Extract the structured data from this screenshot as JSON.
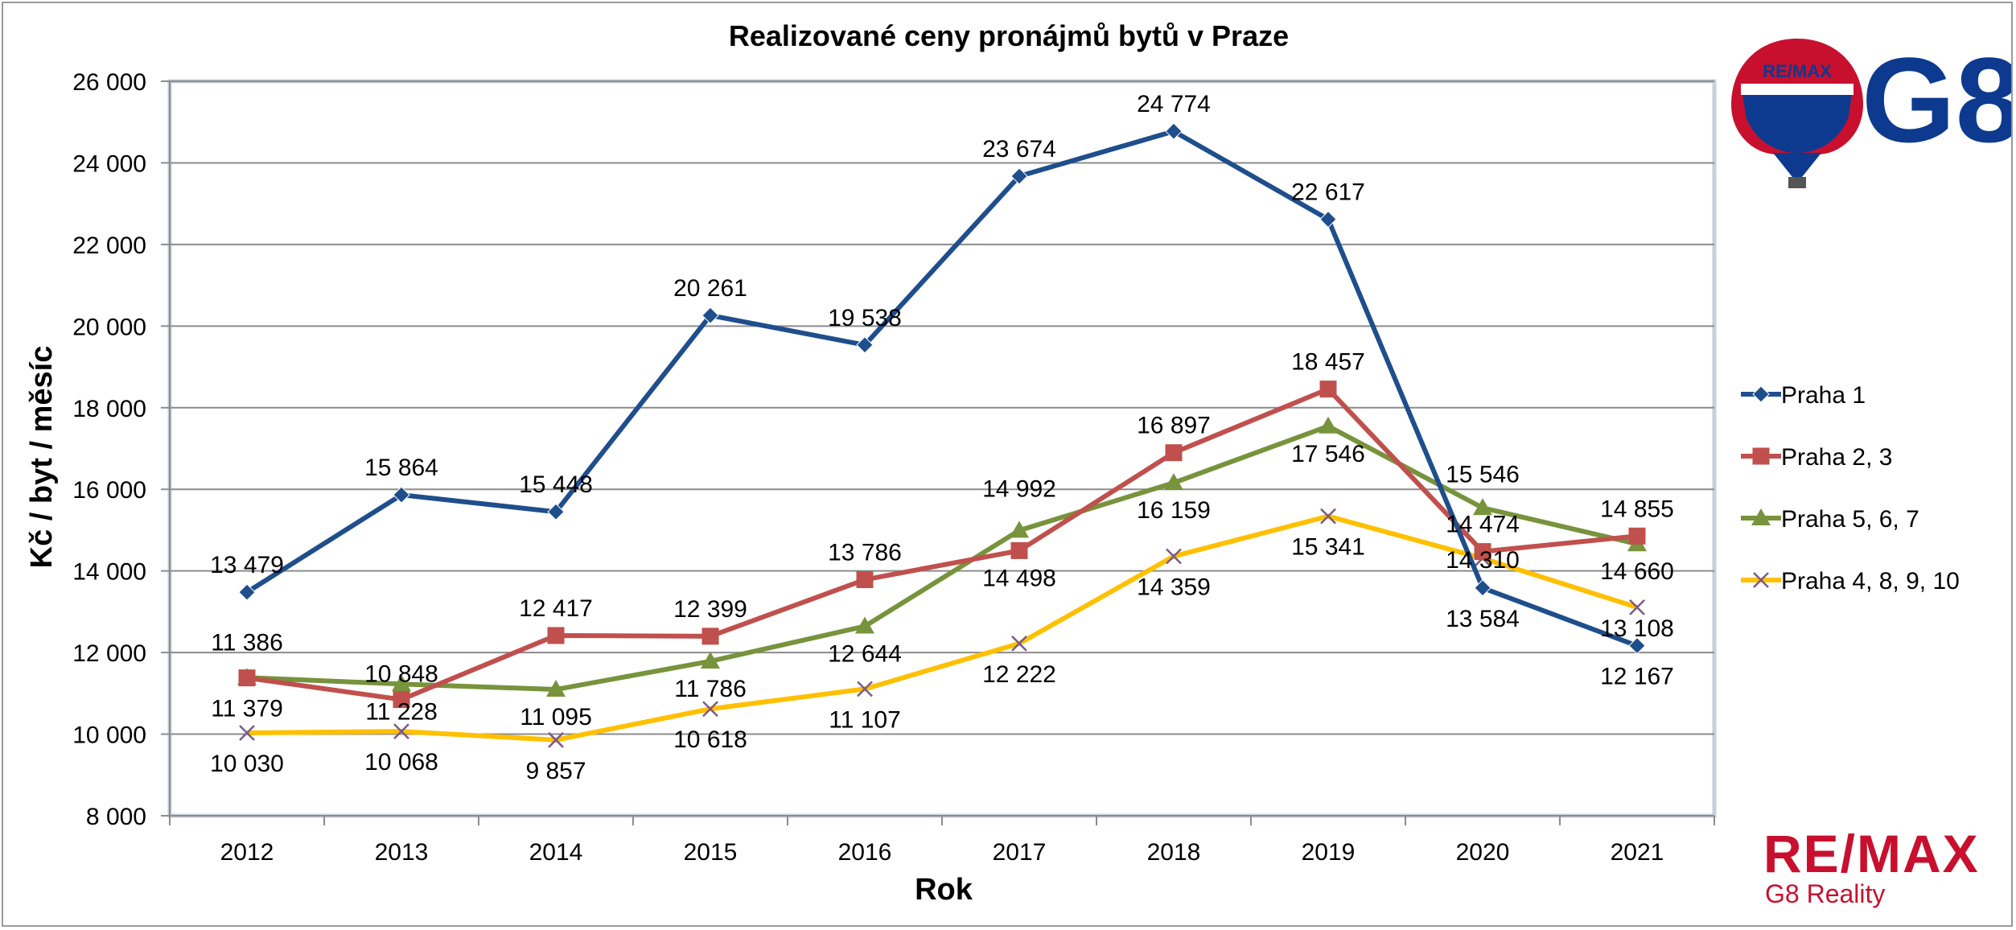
{
  "chart_data": {
    "type": "line",
    "title": "Realizované ceny pronájmů bytů v Praze",
    "xlabel": "Rok",
    "ylabel": "Kč / byt / měsíc",
    "ylim": [
      8000,
      26000
    ],
    "yticks": [
      8000,
      10000,
      12000,
      14000,
      16000,
      18000,
      20000,
      22000,
      24000,
      26000
    ],
    "ytick_labels": [
      "8 000",
      "10 000",
      "12 000",
      "14 000",
      "16 000",
      "18 000",
      "20 000",
      "22 000",
      "24 000",
      "26 000"
    ],
    "categories": [
      "2012",
      "2013",
      "2014",
      "2015",
      "2016",
      "2017",
      "2018",
      "2019",
      "2020",
      "2021"
    ],
    "grid": true,
    "legend_position": "right",
    "series": [
      {
        "name": "Praha 1",
        "color": "#1f4e8c",
        "marker": "diamond",
        "values": [
          13479,
          15864,
          15448,
          20261,
          19538,
          23674,
          24774,
          22617,
          13584,
          12167
        ],
        "labels": [
          "13 479",
          "15 864",
          "15 448",
          "20 261",
          "19 538",
          "23 674",
          "24 774",
          "22 617",
          "13 584",
          "12 167"
        ]
      },
      {
        "name": "Praha 2, 3",
        "color": "#c0504d",
        "marker": "square",
        "values": [
          11379,
          10848,
          12417,
          12399,
          13786,
          14498,
          16897,
          18457,
          14474,
          14855
        ],
        "labels": [
          "11 379",
          "10 848",
          "12 417",
          "12 399",
          "13 786",
          "14 498",
          "16 897",
          "18 457",
          "14 474",
          "14 855"
        ]
      },
      {
        "name": "Praha 5, 6, 7",
        "color": "#77933c",
        "marker": "triangle",
        "values": [
          11386,
          11228,
          11095,
          11786,
          12644,
          14992,
          16159,
          17546,
          15546,
          14660
        ],
        "labels": [
          "11 386",
          "11 228",
          "11 095",
          "11 786",
          "12 644",
          "14 992",
          "16 159",
          "17 546",
          "15 546",
          "14 660"
        ]
      },
      {
        "name": "Praha 4, 8, 9, 10",
        "color": "#ffc000",
        "marker": "x",
        "values": [
          10030,
          10068,
          9857,
          10618,
          11107,
          12222,
          14359,
          15341,
          14310,
          13108
        ],
        "labels": [
          "10 030",
          "10 068",
          "9 857",
          "10 618",
          "11 107",
          "12 222",
          "14 359",
          "15 341",
          "14 310",
          "13 108"
        ]
      }
    ]
  },
  "logos": {
    "top_logo_balloon_text": "RE/MAX",
    "top_logo_text": "G8",
    "bottom_logo_text": "RE/MAX",
    "bottom_logo_sub": "G8 Reality"
  },
  "colors": {
    "remax_red": "#c8102e",
    "remax_blue": "#0d3a8f"
  }
}
